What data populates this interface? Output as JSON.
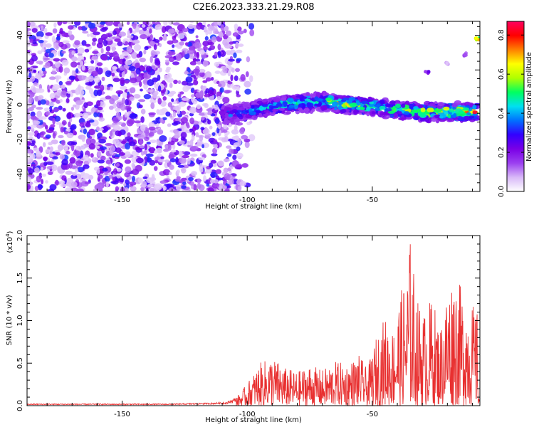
{
  "title": "C2E6.2023.333.21.29.R08",
  "chart_data": [
    {
      "type": "heatmap",
      "title": "C2E6.2023.333.21.29.R08",
      "xlabel": "Height of straight line (km)",
      "ylabel": "Frequency (Hz)",
      "xlim": [
        -188,
        -7
      ],
      "ylim": [
        -50,
        48
      ],
      "x_ticks": [
        -150,
        -100,
        -50
      ],
      "y_ticks": [
        -40,
        -20,
        0,
        20,
        40
      ],
      "colorbar": {
        "label": "Normalized spectral amplitude",
        "range": [
          0.0,
          0.87
        ],
        "ticks": [
          0.0,
          0.2,
          0.4,
          0.6,
          0.8
        ],
        "colors": [
          "#ffffff",
          "#d8b8f8",
          "#9b40f0",
          "#7a00e6",
          "#3300ff",
          "#0070ff",
          "#00e0f0",
          "#00ff60",
          "#b0ff00",
          "#ffff00",
          "#ff8000",
          "#ff0000",
          "#ff0060"
        ]
      },
      "noise_region": {
        "x_from": -188,
        "x_to": -103,
        "x_sparse_to": -98,
        "freq_from": -50,
        "freq_to": 48
      },
      "signal_track": [
        {
          "x": -110,
          "freq": -6,
          "amp": 0.35
        },
        {
          "x": -100,
          "freq": -4,
          "amp": 0.45
        },
        {
          "x": -90,
          "freq": -1,
          "amp": 0.5
        },
        {
          "x": -80,
          "freq": 1,
          "amp": 0.55
        },
        {
          "x": -70,
          "freq": 2,
          "amp": 0.6
        },
        {
          "x": -60,
          "freq": 0,
          "amp": 0.7
        },
        {
          "x": -50,
          "freq": -1,
          "amp": 0.6
        },
        {
          "x": -40,
          "freq": -3,
          "amp": 0.6
        },
        {
          "x": -30,
          "freq": -4,
          "amp": 0.7
        },
        {
          "x": -20,
          "freq": -4,
          "amp": 0.75
        },
        {
          "x": -8,
          "freq": -4,
          "amp": 0.8
        }
      ],
      "secondary_track": [
        {
          "x": -28,
          "freq": 19,
          "amp": 0.25
        },
        {
          "x": -20,
          "freq": 24,
          "amp": 0.1
        },
        {
          "x": -13,
          "freq": 29,
          "amp": 0.15
        },
        {
          "x": -8,
          "freq": 38,
          "amp": 0.7
        }
      ]
    },
    {
      "type": "line",
      "xlabel": "Height of straight line (km)",
      "ylabel": "SNR (10 * v/v)",
      "y_multiplier": "(x10",
      "y_multiplier_exp": "4",
      "xlim": [
        -188,
        -7
      ],
      "ylim": [
        0.0,
        2.0
      ],
      "x_ticks": [
        -150,
        -100,
        -50
      ],
      "y_ticks": [
        "0.0",
        "0.5",
        "1.0",
        "1.5",
        "2.0"
      ],
      "color": "#e83030",
      "series": [
        {
          "x": [
            -188,
            -175,
            -160,
            -145,
            -130,
            -115,
            -108,
            -105,
            -102,
            -98,
            -95,
            -90,
            -85,
            -80,
            -75,
            -70,
            -65,
            -60,
            -55,
            -52,
            -48,
            -45,
            -42,
            -39,
            -36,
            -35,
            -32,
            -29,
            -26,
            -23,
            -20,
            -17,
            -14,
            -11,
            -9,
            -8,
            -7.5,
            -7
          ],
          "y": [
            0.02,
            0.02,
            0.02,
            0.02,
            0.02,
            0.03,
            0.04,
            0.08,
            0.18,
            0.35,
            0.5,
            0.58,
            0.45,
            0.4,
            0.48,
            0.42,
            0.52,
            0.5,
            0.6,
            0.42,
            0.85,
            1.05,
            0.9,
            1.3,
            1.6,
            2.0,
            1.25,
            1.1,
            1.3,
            0.9,
            1.4,
            1.6,
            1.35,
            1.25,
            1.15,
            1.1,
            0.15,
            0.18
          ]
        }
      ]
    }
  ]
}
